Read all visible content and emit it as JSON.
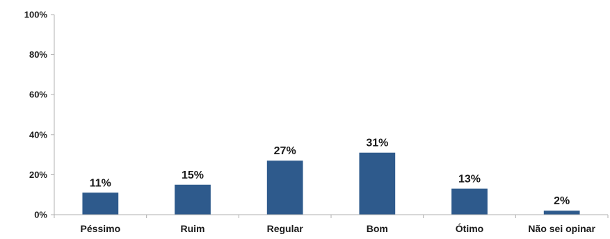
{
  "chart_data": {
    "type": "bar",
    "categories": [
      "Péssimo",
      "Ruim",
      "Regular",
      "Bom",
      "Ótimo",
      "Não sei opinar"
    ],
    "values": [
      11,
      15,
      27,
      31,
      13,
      2
    ],
    "data_labels": [
      "11%",
      "15%",
      "27%",
      "31%",
      "13%",
      "2%"
    ],
    "y_tick_labels": [
      "0%",
      "20%",
      "40%",
      "60%",
      "80%",
      "100%"
    ],
    "ylim": [
      0,
      100
    ],
    "y_ticks": [
      0,
      20,
      40,
      60,
      80,
      100
    ],
    "grid": false,
    "legend": "none",
    "bar_color": "#2E5A8C",
    "axis_color": "#B0B0B0"
  }
}
